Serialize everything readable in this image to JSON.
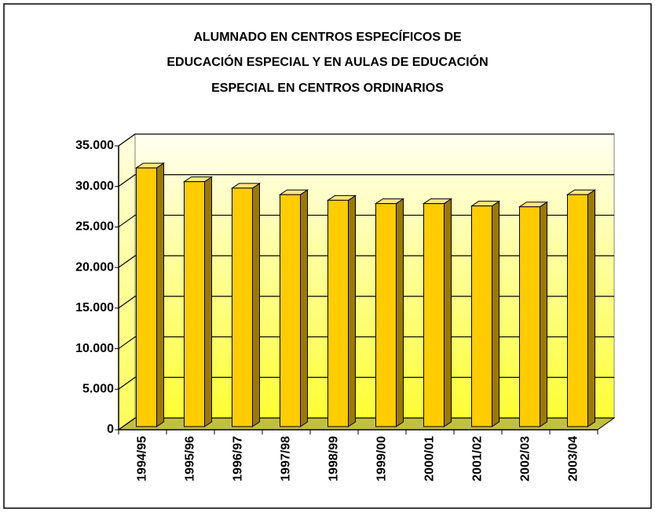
{
  "chart_data": {
    "type": "bar3d",
    "title": [
      "ALUMNADO EN CENTROS ESPECÍFICOS DE",
      "EDUCACIÓN ESPECIAL Y EN AULAS DE EDUCACIÓN",
      "ESPECIAL EN CENTROS ORDINARIOS"
    ],
    "categories": [
      "1994/95",
      "1995/96",
      "1996/97",
      "1997/98",
      "1998/99",
      "1999/00",
      "2000/01",
      "2001/02",
      "2002/03",
      "2003/04"
    ],
    "values": [
      31900,
      30200,
      29400,
      28600,
      27900,
      27500,
      27500,
      27200,
      27100,
      28600
    ],
    "color": "#ffcc00",
    "ylim": [
      0,
      35000
    ],
    "yticks": [
      0,
      {
        "value": 5000,
        "label": "5.000"
      },
      {
        "value": 10000,
        "label": "10.000"
      },
      {
        "value": 15000,
        "label": "15.000"
      },
      {
        "value": 20000,
        "label": "20.000"
      },
      {
        "value": 25000,
        "label": "25.000"
      },
      {
        "value": 30000,
        "label": "30.000"
      },
      {
        "value": 35000,
        "label": "35.000"
      }
    ],
    "grid": true
  }
}
